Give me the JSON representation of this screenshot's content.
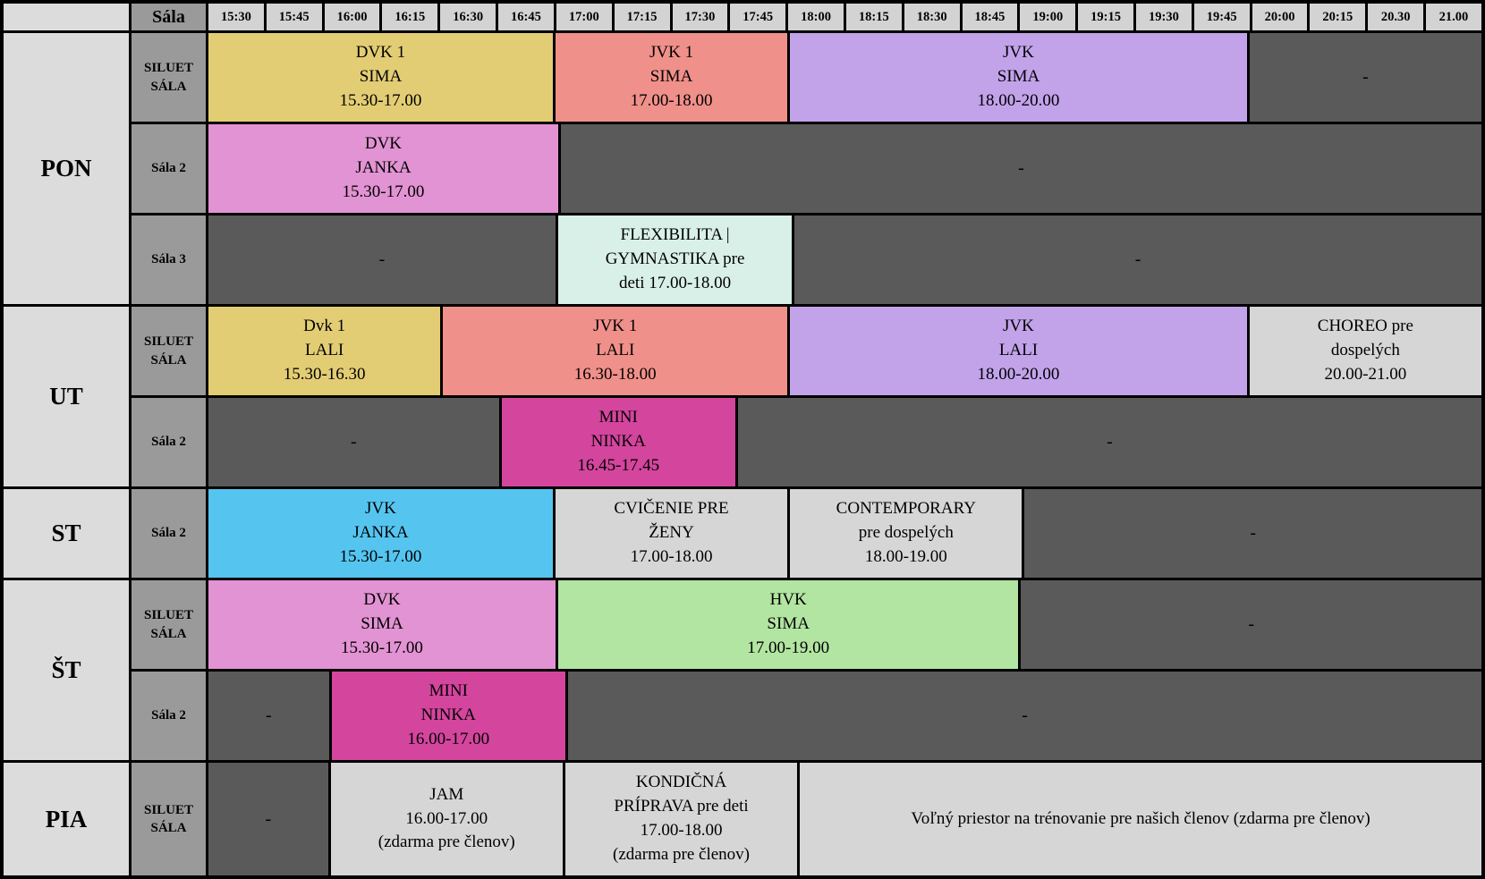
{
  "header": {
    "sala_label": "Sála",
    "times": [
      "15:30",
      "15:45",
      "16:00",
      "16:15",
      "16:30",
      "16:45",
      "17:00",
      "17:15",
      "17:30",
      "17:45",
      "18:00",
      "18:15",
      "18:30",
      "18:45",
      "19:00",
      "19:15",
      "19:30",
      "19:45",
      "20:00",
      "20:15",
      "20.30",
      "21.00"
    ]
  },
  "palette": {
    "yellow": "#e3cd74",
    "salmon": "#f0908a",
    "purple": "#c2a3ea",
    "orchid": "#e293d3",
    "mint": "#d9f0e8",
    "magenta": "#d4459e",
    "blue": "#55c5f0",
    "green": "#b2e5a1",
    "light": "#d6d6d6",
    "dark": "#5a5a5a"
  },
  "days": [
    {
      "label": "PON",
      "rows": [
        {
          "room": [
            "SILUET",
            "SÁLA"
          ],
          "events": [
            {
              "lines": [
                "DVK 1",
                "SIMA",
                "15.30-17.00"
              ],
              "span": 6,
              "color": "yellow"
            },
            {
              "lines": [
                "JVK 1",
                "SIMA",
                "17.00-18.00"
              ],
              "span": 4,
              "color": "salmon"
            },
            {
              "lines": [
                "JVK",
                "SIMA",
                "18.00-20.00"
              ],
              "span": 8,
              "color": "purple"
            },
            {
              "lines": [
                "-"
              ],
              "span": 4,
              "color": "dark"
            }
          ]
        },
        {
          "room": [
            "Sála 2"
          ],
          "events": [
            {
              "lines": [
                "DVK",
                "JANKA",
                "15.30-17.00"
              ],
              "span": 6,
              "color": "orchid"
            },
            {
              "lines": [
                "-"
              ],
              "span": 16,
              "color": "dark"
            }
          ]
        },
        {
          "room": [
            "Sála 3"
          ],
          "events": [
            {
              "lines": [
                "-"
              ],
              "span": 6,
              "color": "dark"
            },
            {
              "lines": [
                "FLEXIBILITA |",
                "GYMNASTIKA pre",
                "deti 17.00-18.00"
              ],
              "span": 4,
              "color": "mint"
            },
            {
              "lines": [
                "-"
              ],
              "span": 12,
              "color": "dark"
            }
          ]
        }
      ]
    },
    {
      "label": "UT",
      "rows": [
        {
          "room": [
            "SILUET",
            "SÁLA"
          ],
          "events": [
            {
              "lines": [
                "Dvk 1",
                "LALI",
                "15.30-16.30"
              ],
              "span": 4,
              "color": "yellow"
            },
            {
              "lines": [
                "JVK 1",
                "LALI",
                "16.30-18.00"
              ],
              "span": 6,
              "color": "salmon"
            },
            {
              "lines": [
                "JVK",
                "LALI",
                "18.00-20.00"
              ],
              "span": 8,
              "color": "purple"
            },
            {
              "lines": [
                "CHOREO pre",
                "dospelých",
                "20.00-21.00"
              ],
              "span": 4,
              "color": "light"
            }
          ]
        },
        {
          "room": [
            "Sála 2"
          ],
          "events": [
            {
              "lines": [
                "-"
              ],
              "span": 5,
              "color": "dark"
            },
            {
              "lines": [
                "MINI",
                "NINKA",
                "16.45-17.45"
              ],
              "span": 4,
              "color": "magenta"
            },
            {
              "lines": [
                "-"
              ],
              "span": 13,
              "color": "dark"
            }
          ]
        }
      ]
    },
    {
      "label": "ST",
      "rows": [
        {
          "room": [
            "Sála 2"
          ],
          "events": [
            {
              "lines": [
                "JVK",
                "JANKA",
                "15.30-17.00"
              ],
              "span": 6,
              "color": "blue"
            },
            {
              "lines": [
                "CVIČENIE PRE",
                "ŽENY",
                "17.00-18.00"
              ],
              "span": 4,
              "color": "light"
            },
            {
              "lines": [
                "CONTEMPORARY",
                "pre dospelých",
                "18.00-19.00"
              ],
              "span": 4,
              "color": "light"
            },
            {
              "lines": [
                "-"
              ],
              "span": 8,
              "color": "dark"
            }
          ]
        }
      ]
    },
    {
      "label": "ŠT",
      "rows": [
        {
          "room": [
            "SILUET",
            "SÁLA"
          ],
          "events": [
            {
              "lines": [
                "DVK",
                "SIMA",
                "15.30-17.00"
              ],
              "span": 6,
              "color": "orchid"
            },
            {
              "lines": [
                "HVK",
                "SIMA",
                "17.00-19.00"
              ],
              "span": 8,
              "color": "green"
            },
            {
              "lines": [
                "-"
              ],
              "span": 8,
              "color": "dark"
            }
          ]
        },
        {
          "room": [
            "Sála 2"
          ],
          "events": [
            {
              "lines": [
                "-"
              ],
              "span": 2,
              "color": "dark"
            },
            {
              "lines": [
                "MINI",
                "NINKA",
                "16.00-17.00"
              ],
              "span": 4,
              "color": "magenta"
            },
            {
              "lines": [
                "-"
              ],
              "span": 16,
              "color": "dark"
            }
          ]
        }
      ]
    },
    {
      "label": "PIA",
      "rows": [
        {
          "room": [
            "SILUET",
            "SÁLA"
          ],
          "tall": true,
          "events": [
            {
              "lines": [
                "-"
              ],
              "span": 2,
              "color": "dark"
            },
            {
              "lines": [
                "JAM",
                "16.00-17.00",
                "(zdarma pre členov)"
              ],
              "span": 4,
              "color": "light"
            },
            {
              "lines": [
                "KONDIČNÁ",
                "PRÍPRAVA pre deti",
                "17.00-18.00",
                "(zdarma pre členov)"
              ],
              "span": 4,
              "color": "light"
            },
            {
              "lines": [
                "Voľný priestor na trénovanie pre našich členov (zdarma pre členov)"
              ],
              "span": 12,
              "color": "light"
            }
          ]
        }
      ]
    }
  ]
}
